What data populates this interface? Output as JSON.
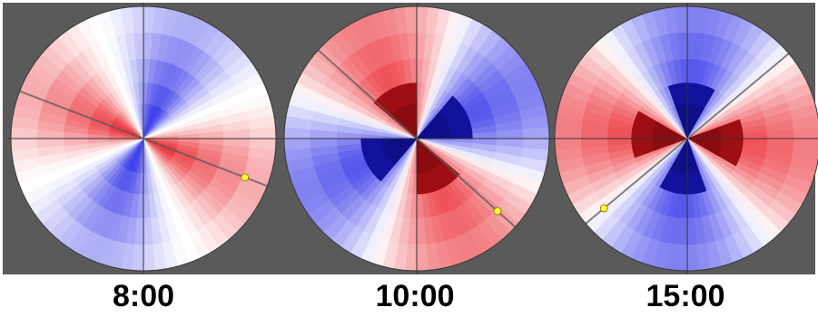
{
  "panels": [
    {
      "label": "8:00",
      "sun_angle_deg": 21,
      "rotation_deg": -22,
      "scheme": "light"
    },
    {
      "label": "10:00",
      "sun_angle_deg": 42,
      "rotation_deg": 20,
      "scheme": "dark"
    },
    {
      "label": "15:00",
      "sun_angle_deg": 140,
      "rotation_deg": 140,
      "scheme": "dark"
    }
  ],
  "colors": {
    "background": "#5a5a5a",
    "positive": "#e8141c",
    "negative": "#1a1ae6",
    "neutral": "#ffffff",
    "sun_marker": "#ffff33"
  }
}
